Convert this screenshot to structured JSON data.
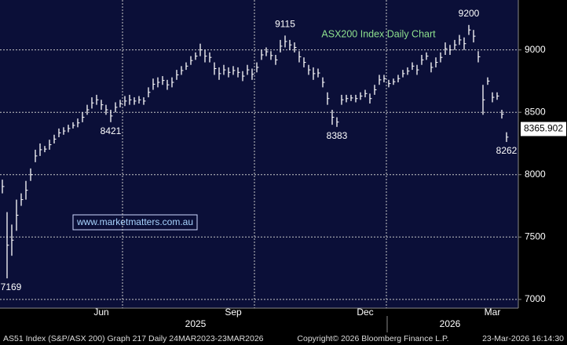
{
  "chart_data": {
    "type": "hilo",
    "title": "ASX200 Index Daily Chart",
    "watermark": "www.marketmatters.com.au",
    "footer": {
      "left": "AS51 Index (S&P/ASX 200) Graph 217 Daily 24MAR2023-23MAR2026",
      "center": "Copyright© 2026 Bloomberg Finance L.P.",
      "right": "23-Mar-2026 16:14:30"
    },
    "color": "#ffffff",
    "categories": [
      null,
      null,
      null,
      null,
      null,
      null,
      null,
      null,
      null,
      null,
      null,
      null,
      null,
      null,
      null,
      null,
      null,
      null,
      null,
      null,
      null,
      "Jun",
      null,
      null,
      null,
      null,
      null,
      null,
      null,
      null,
      null,
      null,
      null,
      null,
      null,
      null,
      null,
      null,
      null,
      null,
      null,
      null,
      null,
      null,
      null,
      null,
      null,
      null,
      null,
      "Sep",
      null,
      null,
      null,
      null,
      null,
      null,
      null,
      null,
      null,
      null,
      null,
      null,
      null,
      null,
      null,
      null,
      null,
      null,
      null,
      null,
      null,
      null,
      null,
      null,
      null,
      null,
      null,
      "Dec",
      null,
      null,
      null,
      null,
      null,
      null,
      null,
      null,
      null,
      null,
      null,
      null,
      null,
      null,
      null,
      null,
      null,
      null,
      null,
      null,
      null,
      null,
      null,
      null,
      null,
      null,
      "Mar",
      null,
      null,
      null,
      null,
      null
    ],
    "years": [
      null,
      null,
      null,
      null,
      null,
      null,
      null,
      null,
      null,
      null,
      null,
      null,
      null,
      null,
      null,
      null,
      null,
      null,
      null,
      null,
      null,
      null,
      null,
      null,
      null,
      null,
      null,
      null,
      null,
      null,
      null,
      null,
      null,
      null,
      null,
      null,
      null,
      null,
      null,
      null,
      null,
      "2025",
      null,
      null,
      null,
      null,
      null,
      null,
      null,
      null,
      null,
      null,
      null,
      null,
      null,
      null,
      null,
      null,
      null,
      null,
      null,
      null,
      null,
      null,
      null,
      null,
      null,
      null,
      null,
      null,
      null,
      null,
      null,
      null,
      null,
      null,
      null,
      null,
      null,
      null,
      null,
      null,
      null,
      null,
      null,
      null,
      null,
      null,
      null,
      null,
      null,
      null,
      null,
      null,
      null,
      "2026",
      null,
      null,
      null,
      null,
      null,
      null,
      null,
      null,
      null,
      null,
      null,
      null,
      null,
      null
    ],
    "high": [
      7960,
      7700,
      7600,
      7800,
      7850,
      7950,
      8050,
      8200,
      8250,
      8230,
      8280,
      8320,
      8370,
      8380,
      8400,
      8420,
      8450,
      8500,
      8560,
      8620,
      8640,
      8600,
      8560,
      8520,
      8580,
      8600,
      8630,
      8640,
      8620,
      8630,
      8620,
      8700,
      8770,
      8780,
      8790,
      8760,
      8780,
      8840,
      8870,
      8900,
      8950,
      8980,
      9050,
      9000,
      8980,
      8900,
      8860,
      8880,
      8860,
      8870,
      8860,
      8830,
      8880,
      8850,
      8900,
      9000,
      9020,
      8990,
      8960,
      9080,
      9115,
      9080,
      9060,
      8990,
      8940,
      8880,
      8860,
      8850,
      8780,
      8660,
      8520,
      8460,
      8640,
      8640,
      8640,
      8640,
      8660,
      8680,
      8650,
      8720,
      8800,
      8800,
      8760,
      8770,
      8800,
      8840,
      8860,
      8900,
      8880,
      8960,
      8980,
      8900,
      8940,
      8980,
      9060,
      9040,
      9080,
      9120,
      9100,
      9200,
      9160,
      8990,
      8720,
      8780,
      8660,
      8660,
      8520,
      8340,
      null,
      null
    ],
    "low": [
      7850,
      7169,
      7350,
      7550,
      7750,
      7800,
      7950,
      8100,
      8150,
      8180,
      8200,
      8250,
      8300,
      8320,
      8340,
      8370,
      8380,
      8420,
      8480,
      8530,
      8560,
      8520,
      8480,
      8421,
      8500,
      8540,
      8550,
      8560,
      8560,
      8570,
      8560,
      8620,
      8680,
      8700,
      8720,
      8680,
      8700,
      8760,
      8800,
      8840,
      8880,
      8920,
      8950,
      8900,
      8900,
      8800,
      8760,
      8800,
      8780,
      8800,
      8780,
      8750,
      8800,
      8760,
      8820,
      8920,
      8950,
      8920,
      8880,
      8980,
      9020,
      9000,
      8980,
      8900,
      8860,
      8800,
      8760,
      8780,
      8700,
      8560,
      8400,
      8383,
      8560,
      8580,
      8590,
      8580,
      8600,
      8620,
      8570,
      8640,
      8720,
      8740,
      8700,
      8720,
      8740,
      8780,
      8800,
      8840,
      8800,
      8880,
      8920,
      8820,
      8860,
      8900,
      8960,
      8960,
      9000,
      9040,
      9000,
      9120,
      9060,
      8900,
      8480,
      8720,
      8580,
      8600,
      8450,
      8262,
      null,
      null
    ],
    "high_labels": {
      "60": "9115",
      "99": "9200"
    },
    "low_labels": {
      "1": "7169",
      "23": "8421",
      "71": "8383",
      "107": "8262"
    },
    "last_price": 8365.902,
    "ylim": [
      6930,
      9400
    ],
    "yticks": [
      7000,
      7500,
      8000,
      8500,
      9000
    ],
    "grid": true
  }
}
